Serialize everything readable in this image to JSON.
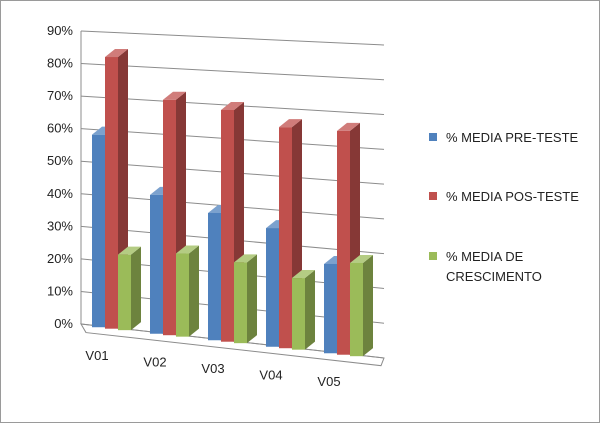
{
  "chart_data": {
    "type": "bar",
    "style": "3d-clustered-column",
    "categories": [
      "V01",
      "V02",
      "V03",
      "V04",
      "V05"
    ],
    "yticks": [
      "0%",
      "10%",
      "20%",
      "30%",
      "40%",
      "50%",
      "60%",
      "70%",
      "80%",
      "90%"
    ],
    "ylim": [
      0,
      90
    ],
    "grid": true,
    "legend_position": "right",
    "series": [
      {
        "name": "% MEDIA PRE-TESTE",
        "color": "#4F81BD",
        "values": [
          59,
          42,
          38,
          35,
          26
        ]
      },
      {
        "name": "% MEDIA POS-TESTE",
        "color": "#C0504D",
        "values": [
          83,
          71,
          69,
          65,
          65
        ]
      },
      {
        "name_lines": [
          "% MEDIA DE",
          "CRESCIMENTO"
        ],
        "color": "#9BBB59",
        "values": [
          23,
          25,
          24,
          21,
          27
        ]
      }
    ]
  }
}
